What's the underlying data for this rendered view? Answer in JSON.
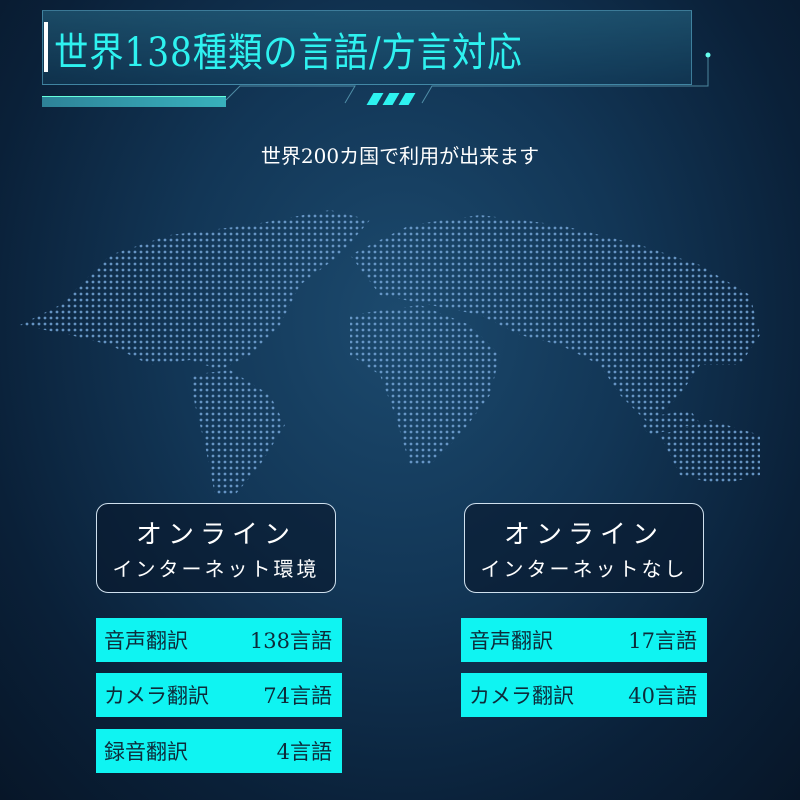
{
  "header": {
    "title": "世界138種類の言語/方言対応",
    "subtitle": "世界200カ国で利用が出来ます"
  },
  "colors": {
    "accent": "#0ff4f2",
    "background": "#123656"
  },
  "modes": [
    {
      "line1": "オンライン",
      "line2": "インターネット環境",
      "rows": [
        {
          "label": "音声翻訳",
          "value": "138言語"
        },
        {
          "label": "カメラ翻訳",
          "value": "74言語"
        },
        {
          "label": "録音翻訳",
          "value": "4言語"
        }
      ]
    },
    {
      "line1": "オンライン",
      "line2": "インターネットなし",
      "rows": [
        {
          "label": "音声翻訳",
          "value": "17言語"
        },
        {
          "label": "カメラ翻訳",
          "value": "40言語"
        }
      ]
    }
  ]
}
